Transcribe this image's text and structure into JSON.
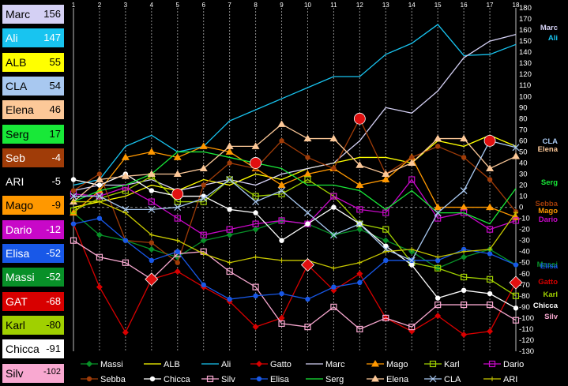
{
  "leaderboard": [
    {
      "name": "Marc",
      "score": "156",
      "bg": "#d4d0f4",
      "fg": "#000000"
    },
    {
      "name": "Ali",
      "score": "147",
      "bg": "#18c4f0",
      "fg": "#ffffff"
    },
    {
      "name": "ALB",
      "score": "55",
      "bg": "#ffff00",
      "fg": "#000000"
    },
    {
      "name": "CLA",
      "score": "54",
      "bg": "#a8c8f0",
      "fg": "#000000"
    },
    {
      "name": "Elena",
      "score": "46",
      "bg": "#fcc898",
      "fg": "#000000"
    },
    {
      "name": "Serg",
      "score": "17",
      "bg": "#18e838",
      "fg": "#000000"
    },
    {
      "name": "Seb",
      "score": "-4",
      "bg": "#a03c08",
      "fg": "#ffffff"
    },
    {
      "name": "ARI",
      "score": "-5",
      "bg": "#000000",
      "fg": "#ffffff"
    },
    {
      "name": "Mago",
      "score": "-9",
      "bg": "#ff9800",
      "fg": "#000000"
    },
    {
      "name": "Dario",
      "score": "-12",
      "bg": "#c808c8",
      "fg": "#ffffff"
    },
    {
      "name": "Elisa",
      "score": "-52",
      "bg": "#1858e8",
      "fg": "#ffffff"
    },
    {
      "name": "Massi",
      "score": "-52",
      "bg": "#089028",
      "fg": "#ffffff"
    },
    {
      "name": "GAT",
      "score": "-68",
      "bg": "#d80000",
      "fg": "#ffffff"
    },
    {
      "name": "Karl",
      "score": "-80",
      "bg": "#a0d000",
      "fg": "#000000"
    },
    {
      "name": "Chicca",
      "score": "-91",
      "bg": "#ffffff",
      "fg": "#000000"
    },
    {
      "name": "Silv",
      "score": "-102",
      "bg": "#f8a8d0",
      "fg": "#000000"
    }
  ],
  "chart_data": {
    "type": "line",
    "x": [
      1,
      2,
      3,
      4,
      5,
      6,
      7,
      8,
      9,
      10,
      11,
      12,
      13,
      14,
      15,
      16,
      17,
      18
    ],
    "ylim": [
      -130,
      180
    ],
    "yticks": [
      -130,
      -120,
      -110,
      -100,
      -90,
      -80,
      -70,
      -60,
      -50,
      -40,
      -30,
      -20,
      -10,
      0,
      10,
      20,
      30,
      40,
      50,
      60,
      70,
      80,
      90,
      100,
      110,
      120,
      130,
      140,
      150,
      160,
      170,
      180
    ],
    "grid": true,
    "legend_position": "bottom",
    "series": [
      {
        "name": "Massi",
        "color": "#089028",
        "marker": "diamond",
        "values": [
          -5,
          -25,
          -30,
          -38,
          -45,
          -30,
          -25,
          -20,
          -12,
          -15,
          -25,
          -20,
          -30,
          -40,
          -55,
          -45,
          -38,
          -52
        ]
      },
      {
        "name": "ALB",
        "color": "#ffff00",
        "marker": "none",
        "values": [
          0,
          5,
          10,
          20,
          15,
          25,
          20,
          30,
          25,
          35,
          40,
          45,
          45,
          40,
          60,
          55,
          65,
          55
        ]
      },
      {
        "name": "Ali",
        "color": "#18c4f0",
        "marker": "none",
        "values": [
          20,
          25,
          55,
          65,
          50,
          55,
          78,
          88,
          98,
          108,
          118,
          118,
          138,
          148,
          165,
          137,
          138,
          147
        ]
      },
      {
        "name": "Gatto",
        "color": "#d80000",
        "marker": "diamond",
        "values": [
          -15,
          -72,
          -113,
          -65,
          -58,
          -72,
          -85,
          -108,
          -100,
          -52,
          -75,
          -60,
          -100,
          -112,
          -98,
          -115,
          -112,
          -68
        ]
      },
      {
        "name": "Marc",
        "color": "#d4d0f4",
        "marker": "none",
        "values": [
          15,
          20,
          20,
          25,
          15,
          20,
          25,
          20,
          30,
          35,
          40,
          60,
          90,
          85,
          105,
          135,
          150,
          156
        ]
      },
      {
        "name": "Mago",
        "color": "#ff9800",
        "marker": "triangle",
        "values": [
          -5,
          15,
          45,
          50,
          45,
          55,
          50,
          35,
          20,
          30,
          35,
          20,
          25,
          45,
          0,
          0,
          0,
          -9
        ]
      },
      {
        "name": "Karl",
        "color": "#a0d000",
        "marker": "square",
        "values": [
          -3,
          8,
          15,
          28,
          5,
          5,
          25,
          10,
          12,
          25,
          10,
          -15,
          -20,
          -50,
          -55,
          -63,
          -65,
          -80
        ]
      },
      {
        "name": "Dario",
        "color": "#c808c8",
        "marker": "square",
        "values": [
          12,
          10,
          18,
          5,
          -10,
          -25,
          -20,
          -15,
          -12,
          -15,
          10,
          -2,
          -5,
          25,
          -10,
          -5,
          -20,
          -12
        ]
      },
      {
        "name": "Sebba",
        "color": "#a03c08",
        "marker": "circle",
        "values": [
          15,
          30,
          -30,
          -32,
          -50,
          20,
          40,
          35,
          60,
          45,
          35,
          80,
          30,
          45,
          55,
          45,
          25,
          -4
        ]
      },
      {
        "name": "Chicca",
        "color": "#ffffff",
        "marker": "circle",
        "values": [
          25,
          20,
          30,
          15,
          10,
          10,
          -2,
          -5,
          -30,
          -15,
          0,
          -15,
          -35,
          -52,
          -82,
          -75,
          -78,
          -91
        ]
      },
      {
        "name": "Silv",
        "color": "#f8a8d0",
        "marker": "square",
        "values": [
          -30,
          -45,
          -50,
          -65,
          -42,
          -40,
          -58,
          -72,
          -105,
          -108,
          -90,
          -110,
          -100,
          -108,
          -88,
          -88,
          -88,
          -102
        ]
      },
      {
        "name": "Elisa",
        "color": "#1858e8",
        "marker": "circle",
        "values": [
          -15,
          -10,
          -30,
          -48,
          -40,
          -70,
          -83,
          -80,
          -78,
          -83,
          -72,
          -68,
          -48,
          -48,
          -48,
          -38,
          -42,
          -52
        ]
      },
      {
        "name": "Serg",
        "color": "#18e838",
        "marker": "none",
        "values": [
          5,
          15,
          20,
          30,
          50,
          50,
          45,
          40,
          35,
          20,
          20,
          15,
          -2,
          15,
          -5,
          -5,
          -15,
          17
        ]
      },
      {
        "name": "Elena",
        "color": "#fcc898",
        "marker": "triangle",
        "values": [
          5,
          25,
          28,
          30,
          30,
          35,
          55,
          55,
          75,
          62,
          62,
          38,
          30,
          40,
          62,
          62,
          35,
          46
        ]
      },
      {
        "name": "CLA",
        "color": "#a8c8f0",
        "marker": "x",
        "values": [
          10,
          10,
          -2,
          -2,
          0,
          8,
          25,
          5,
          15,
          -5,
          -25,
          -15,
          -38,
          -48,
          -5,
          15,
          60,
          54
        ]
      },
      {
        "name": "ARI",
        "color": "#c8c800",
        "marker": "star",
        "values": [
          5,
          5,
          -5,
          -25,
          -30,
          -42,
          -50,
          -45,
          -48,
          -48,
          -55,
          -50,
          -40,
          -38,
          -45,
          -40,
          -38,
          -5
        ]
      }
    ],
    "highlights": [
      {
        "series": "Sebba",
        "x": 5,
        "y": 12,
        "shape": "circle"
      },
      {
        "series": "Sebba",
        "x": 8,
        "y": 40,
        "shape": "circle"
      },
      {
        "series": "Sebba",
        "x": 12,
        "y": 80,
        "shape": "circle"
      },
      {
        "series": "Mago",
        "x": 17,
        "y": 60,
        "shape": "circle"
      },
      {
        "series": "Gatto",
        "x": 4,
        "y": -65,
        "shape": "diamond"
      },
      {
        "series": "Gatto",
        "x": 10,
        "y": -52,
        "shape": "diamond"
      },
      {
        "series": "Gatto",
        "x": 18,
        "y": -68,
        "shape": "diamond"
      }
    ],
    "end_labels": [
      {
        "text": "Marc",
        "color": "#d4d0f4"
      },
      {
        "text": "Ali",
        "color": "#18c4f0"
      },
      {
        "text": "CLA",
        "color": "#a8c8f0"
      },
      {
        "text": "Elena",
        "color": "#fcc898"
      },
      {
        "text": "Serg",
        "color": "#18e838"
      },
      {
        "text": "Sebba",
        "color": "#a03c08"
      },
      {
        "text": "Mago",
        "color": "#ff9800"
      },
      {
        "text": "Dario",
        "color": "#c808c8"
      },
      {
        "text": "Massi",
        "color": "#089028"
      },
      {
        "text": "Elisa",
        "color": "#1858e8"
      },
      {
        "text": "Gatto",
        "color": "#d80000"
      },
      {
        "text": "Karl",
        "color": "#a0d000"
      },
      {
        "text": "Chicca",
        "color": "#ffffff"
      },
      {
        "text": "Silv",
        "color": "#f8a8d0"
      }
    ]
  }
}
